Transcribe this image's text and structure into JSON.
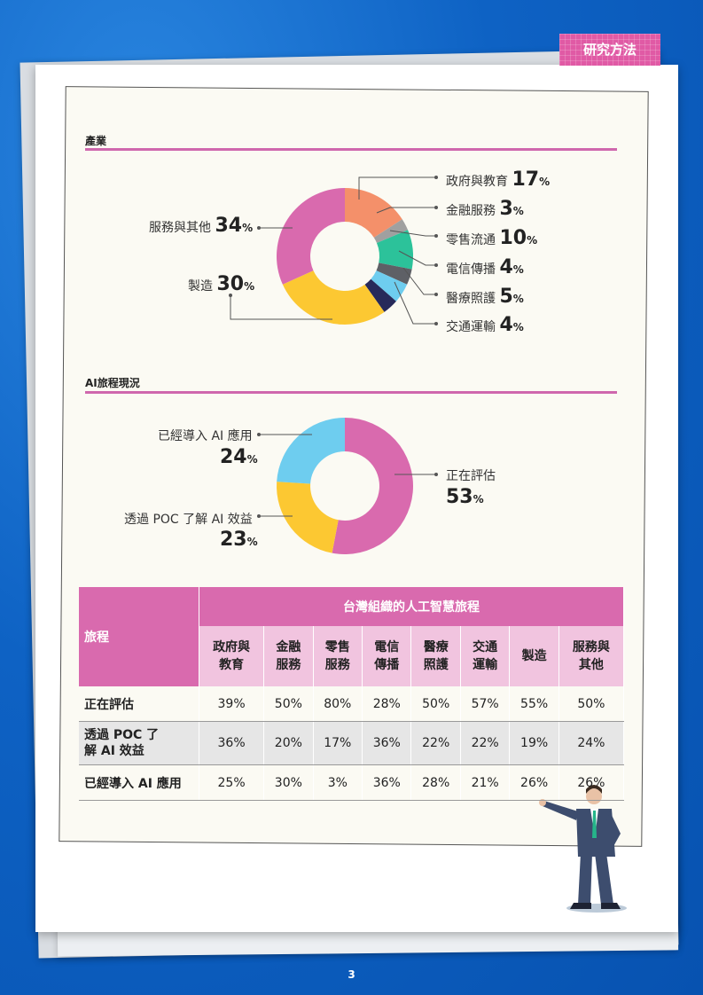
{
  "tab_label": "研究方法",
  "page_number": "3",
  "colors": {
    "accent": "#d96aae",
    "light": "#f1c4df"
  },
  "sections": {
    "industry_title": "產業",
    "journey_title": "AI旅程現況"
  },
  "chart_data": [
    {
      "type": "pie",
      "title": "產業",
      "slices": [
        {
          "label": "政府與教育",
          "value": 17,
          "color": "#f4906a"
        },
        {
          "label": "金融服務",
          "value": 3,
          "color": "#a0a0a0"
        },
        {
          "label": "零售流通",
          "value": 10,
          "color": "#2cc29a"
        },
        {
          "label": "電信傳播",
          "value": 4,
          "color": "#5e6066"
        },
        {
          "label": "醫療照護",
          "value": 5,
          "color": "#6ecdef"
        },
        {
          "label": "交通運輸",
          "value": 4,
          "color": "#272a5a"
        },
        {
          "label": "製造",
          "value": 30,
          "color": "#fcc832"
        },
        {
          "label": "服務與其他",
          "value": 34,
          "color": "#d96aae"
        }
      ],
      "unit": "%"
    },
    {
      "type": "pie",
      "title": "AI旅程現況",
      "slices": [
        {
          "label": "正在評估",
          "value": 53,
          "color": "#d96aae"
        },
        {
          "label": "透過 POC 了解 AI 效益",
          "value": 23,
          "color": "#fcc832"
        },
        {
          "label": "已經導入 AI 應用",
          "value": 24,
          "color": "#6ecdef"
        }
      ],
      "unit": "%"
    },
    {
      "type": "table",
      "title": "台灣組織的人工智慧旅程",
      "corner": "旅程",
      "columns": [
        [
          "政府與",
          "教育"
        ],
        [
          "金融",
          "服務"
        ],
        [
          "零售",
          "服務"
        ],
        [
          "電信",
          "傳播"
        ],
        [
          "醫療",
          "照護"
        ],
        [
          "交通",
          "運輸"
        ],
        [
          "製造",
          ""
        ],
        [
          "服務與",
          "其他"
        ]
      ],
      "rows": [
        {
          "label": [
            "正在評估",
            ""
          ],
          "values": [
            "39%",
            "50%",
            "80%",
            "28%",
            "50%",
            "57%",
            "55%",
            "50%"
          ]
        },
        {
          "label": [
            "透過 POC 了",
            "解 AI 效益"
          ],
          "values": [
            "36%",
            "20%",
            "17%",
            "36%",
            "22%",
            "22%",
            "19%",
            "24%"
          ]
        },
        {
          "label": [
            "已經導入 AI 應用",
            ""
          ],
          "values": [
            "25%",
            "30%",
            "3%",
            "36%",
            "28%",
            "21%",
            "26%",
            "26%"
          ]
        }
      ]
    }
  ]
}
